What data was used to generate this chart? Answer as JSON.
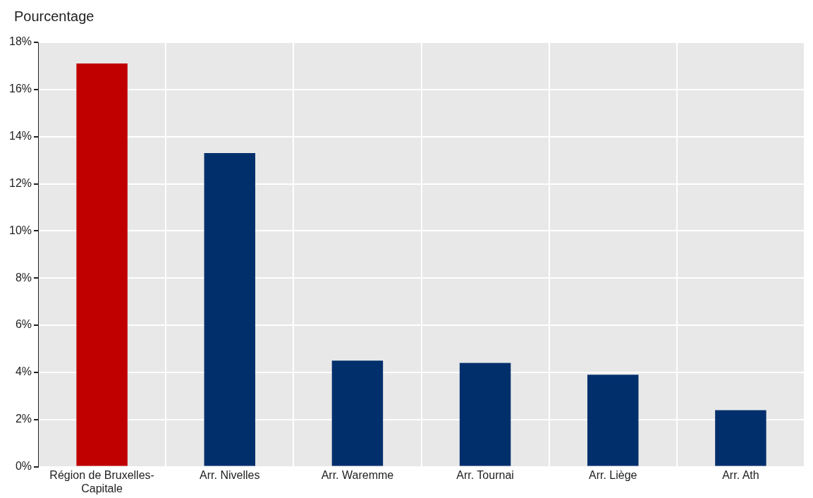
{
  "chart_data": {
    "type": "bar",
    "ylabel": "Pourcentage",
    "categories": [
      "Région de Bruxelles-Capitale",
      "Arr. Nivelles",
      "Arr. Waremme",
      "Arr. Tournai",
      "Arr. Liège",
      "Arr. Ath"
    ],
    "values": [
      17.1,
      13.3,
      4.5,
      4.4,
      3.9,
      2.4
    ],
    "colors": [
      "#c00000",
      "#002f6c",
      "#002f6c",
      "#002f6c",
      "#002f6c",
      "#002f6c"
    ],
    "ylim": [
      0,
      18
    ],
    "yticks": [
      {
        "value": 0,
        "label": "0%"
      },
      {
        "value": 2,
        "label": "2%"
      },
      {
        "value": 4,
        "label": "4%"
      },
      {
        "value": 6,
        "label": "6%"
      },
      {
        "value": 8,
        "label": "8%"
      },
      {
        "value": 10,
        "label": "10%"
      },
      {
        "value": 12,
        "label": "12%"
      },
      {
        "value": 14,
        "label": "14%"
      },
      {
        "value": 16,
        "label": "16%"
      },
      {
        "value": 18,
        "label": "18%"
      }
    ],
    "grid": true,
    "legend": false
  }
}
